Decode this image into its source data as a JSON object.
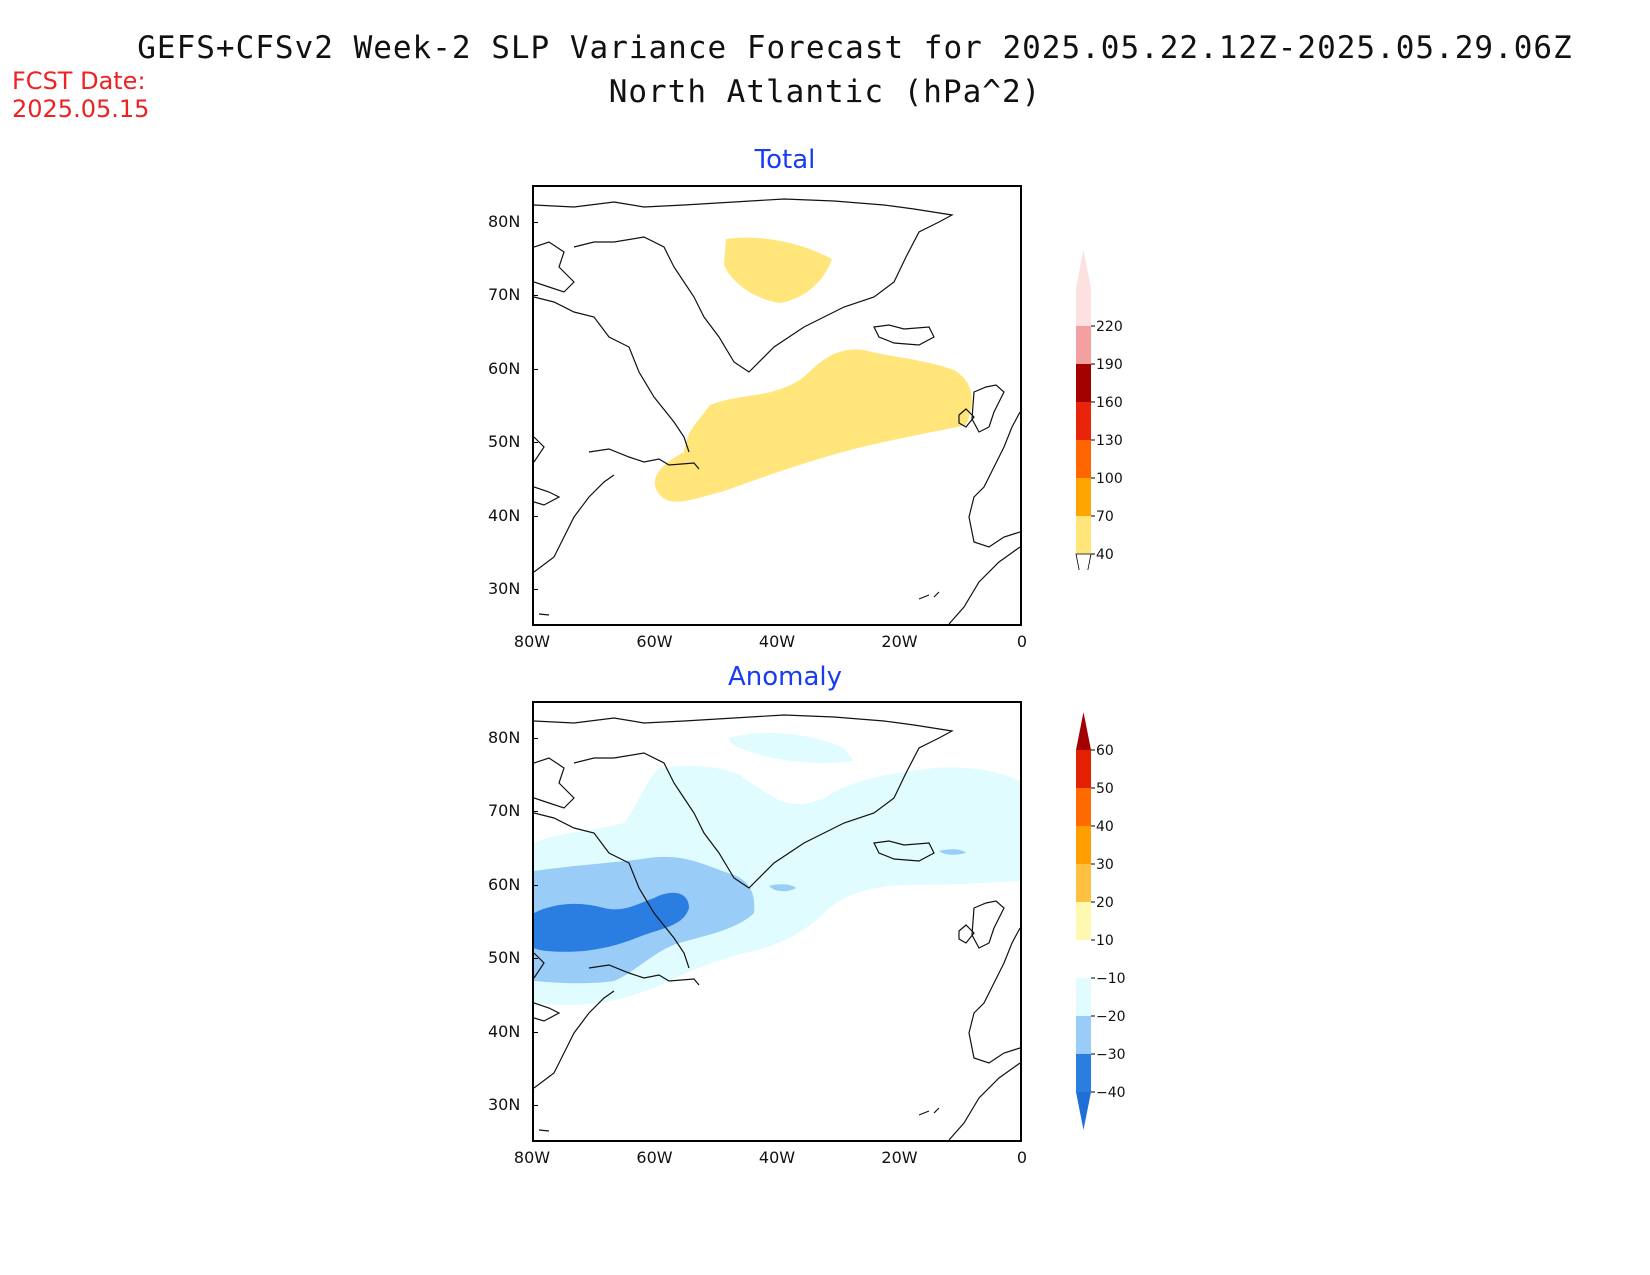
{
  "header": {
    "title": "GEFS+CFSv2 Week-2 SLP Variance Forecast for 2025.05.22.12Z-2025.05.29.06Z",
    "subtitle": "North Atlantic (hPa^2)",
    "fcst_label": "FCST Date:",
    "fcst_date": "2025.05.15"
  },
  "map_extent": {
    "lon": [
      -80,
      0
    ],
    "lat": [
      25,
      85
    ]
  },
  "axis_ticks": {
    "lat_labels": [
      "30N",
      "40N",
      "50N",
      "60N",
      "70N",
      "80N"
    ],
    "lon_labels": [
      "80W",
      "60W",
      "40W",
      "20W",
      "0"
    ]
  },
  "panels": [
    {
      "id": "total",
      "title": "Total",
      "colorbar": {
        "labels": [
          "40",
          "70",
          "100",
          "130",
          "160",
          "190",
          "220"
        ],
        "colors": [
          "#ffe57a",
          "#ffa500",
          "#ff6600",
          "#e8250a",
          "#a30000",
          "#f4a0a0",
          "#fde0e0"
        ],
        "extend_low": "#ffffff",
        "extend_high": "#fde0e0"
      }
    },
    {
      "id": "anomaly",
      "title": "Anomaly",
      "colorbar": {
        "labels": [
          "−40",
          "−30",
          "−20",
          "−10",
          "10",
          "20",
          "30",
          "40",
          "50",
          "60"
        ],
        "colors": [
          "#2a7de1",
          "#99ccf7",
          "#e1fcff",
          "#ffffff",
          "#fff8b0",
          "#ffbf40",
          "#ff9e00",
          "#ff6a00",
          "#e32000"
        ],
        "extend_low": "#1f6fd6",
        "extend_high": "#a30000"
      }
    }
  ],
  "palette": {
    "total_fill": "#ffe57a",
    "anom_10_20": "#e1fcff",
    "anom_20_30": "#99ccf7",
    "anom_30_40": "#2a7de1",
    "title_blue": "#1a3cf0",
    "fcst_red": "#ee2222"
  }
}
